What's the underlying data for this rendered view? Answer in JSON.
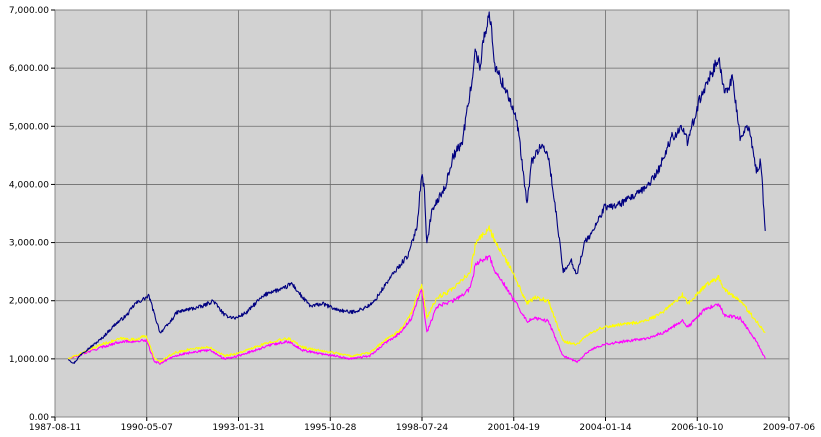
{
  "chart_data": {
    "type": "line",
    "title": "",
    "xlabel": "",
    "ylabel": "",
    "x_range": [
      "1987-08-11",
      "2009-07-06"
    ],
    "ylim": [
      0,
      7000
    ],
    "grid": true,
    "legend": "none",
    "plot_background": "#d2d2d2",
    "x_ticks": [
      "1987-08-11",
      "1990-05-07",
      "1993-01-31",
      "1995-10-28",
      "1998-07-24",
      "2001-04-19",
      "2004-01-14",
      "2006-10-10",
      "2009-07-06"
    ],
    "y_ticks": [
      {
        "value": 0,
        "label": "0.00"
      },
      {
        "value": 1000,
        "label": "1,000.00"
      },
      {
        "value": 2000,
        "label": "2,000.00"
      },
      {
        "value": 3000,
        "label": "3,000.00"
      },
      {
        "value": 4000,
        "label": "4,000.00"
      },
      {
        "value": 5000,
        "label": "5,000.00"
      },
      {
        "value": 6000,
        "label": "6,000.00"
      },
      {
        "value": 7000,
        "label": "7,000.00"
      }
    ],
    "series": [
      {
        "color": "#000080",
        "points": [
          [
            "1988-01-04",
            1000
          ],
          [
            "1988-03-01",
            920
          ],
          [
            "1988-06-01",
            1100
          ],
          [
            "1988-09-01",
            1200
          ],
          [
            "1989-01-01",
            1350
          ],
          [
            "1989-06-01",
            1600
          ],
          [
            "1989-10-01",
            1750
          ],
          [
            "1990-01-01",
            1950
          ],
          [
            "1990-03-01",
            2000
          ],
          [
            "1990-06-01",
            2080
          ],
          [
            "1990-08-01",
            1750
          ],
          [
            "1990-10-01",
            1450
          ],
          [
            "1991-01-01",
            1600
          ],
          [
            "1991-04-01",
            1800
          ],
          [
            "1991-08-01",
            1850
          ],
          [
            "1992-01-01",
            1900
          ],
          [
            "1992-05-01",
            2000
          ],
          [
            "1992-09-01",
            1750
          ],
          [
            "1993-01-01",
            1700
          ],
          [
            "1993-05-01",
            1800
          ],
          [
            "1993-09-01",
            2000
          ],
          [
            "1994-01-01",
            2150
          ],
          [
            "1994-06-01",
            2200
          ],
          [
            "1994-09-01",
            2300
          ],
          [
            "1995-01-01",
            2050
          ],
          [
            "1995-04-01",
            1900
          ],
          [
            "1995-08-01",
            1950
          ],
          [
            "1996-01-01",
            1850
          ],
          [
            "1996-06-01",
            1800
          ],
          [
            "1996-10-01",
            1850
          ],
          [
            "1997-02-01",
            1950
          ],
          [
            "1997-07-01",
            2300
          ],
          [
            "1997-10-01",
            2500
          ],
          [
            "1998-03-01",
            2800
          ],
          [
            "1998-06-01",
            3300
          ],
          [
            "1998-07-20",
            4200
          ],
          [
            "1998-08-20",
            3900
          ],
          [
            "1998-09-15",
            2950
          ],
          [
            "1998-11-01",
            3500
          ],
          [
            "1999-01-01",
            3700
          ],
          [
            "1999-04-01",
            3950
          ],
          [
            "1999-07-01",
            4500
          ],
          [
            "1999-10-01",
            4700
          ],
          [
            "2000-01-01",
            5600
          ],
          [
            "2000-03-01",
            6300
          ],
          [
            "2000-04-15",
            6000
          ],
          [
            "2000-06-01",
            6600
          ],
          [
            "2000-08-01",
            6900
          ],
          [
            "2000-10-01",
            6000
          ],
          [
            "2001-01-01",
            5700
          ],
          [
            "2001-03-01",
            5500
          ],
          [
            "2001-06-01",
            5000
          ],
          [
            "2001-09-10",
            3650
          ],
          [
            "2001-11-01",
            4400
          ],
          [
            "2002-02-01",
            4650
          ],
          [
            "2002-05-01",
            4500
          ],
          [
            "2002-08-01",
            3400
          ],
          [
            "2002-10-10",
            2500
          ],
          [
            "2003-01-01",
            2700
          ],
          [
            "2003-03-10",
            2450
          ],
          [
            "2003-06-01",
            3000
          ],
          [
            "2003-09-01",
            3200
          ],
          [
            "2004-01-01",
            3600
          ],
          [
            "2004-06-01",
            3650
          ],
          [
            "2004-10-01",
            3750
          ],
          [
            "2005-03-01",
            3900
          ],
          [
            "2005-08-01",
            4200
          ],
          [
            "2006-01-01",
            4800
          ],
          [
            "2006-05-01",
            5000
          ],
          [
            "2006-07-01",
            4700
          ],
          [
            "2006-10-01",
            5300
          ],
          [
            "2007-02-01",
            5800
          ],
          [
            "2007-06-01",
            6150
          ],
          [
            "2007-08-01",
            5600
          ],
          [
            "2007-11-01",
            5800
          ],
          [
            "2008-01-20",
            4800
          ],
          [
            "2008-05-01",
            5000
          ],
          [
            "2008-07-15",
            4200
          ],
          [
            "2008-09-01",
            4400
          ],
          [
            "2008-10-20",
            3200
          ]
        ]
      },
      {
        "color": "#ffff00",
        "points": [
          [
            "1988-01-04",
            1000
          ],
          [
            "1988-06-01",
            1100
          ],
          [
            "1989-01-01",
            1250
          ],
          [
            "1989-08-01",
            1350
          ],
          [
            "1990-01-01",
            1330
          ],
          [
            "1990-05-01",
            1400
          ],
          [
            "1990-08-01",
            1000
          ],
          [
            "1990-10-01",
            950
          ],
          [
            "1991-03-01",
            1100
          ],
          [
            "1991-10-01",
            1180
          ],
          [
            "1992-04-01",
            1200
          ],
          [
            "1992-09-01",
            1050
          ],
          [
            "1993-02-01",
            1100
          ],
          [
            "1993-08-01",
            1200
          ],
          [
            "1994-02-01",
            1300
          ],
          [
            "1994-08-01",
            1350
          ],
          [
            "1995-01-01",
            1200
          ],
          [
            "1995-06-01",
            1150
          ],
          [
            "1996-01-01",
            1100
          ],
          [
            "1996-06-01",
            1050
          ],
          [
            "1997-01-01",
            1100
          ],
          [
            "1997-06-01",
            1300
          ],
          [
            "1997-12-01",
            1500
          ],
          [
            "1998-04-01",
            1800
          ],
          [
            "1998-07-20",
            2300
          ],
          [
            "1998-09-15",
            1700
          ],
          [
            "1999-01-01",
            2050
          ],
          [
            "1999-07-01",
            2200
          ],
          [
            "2000-01-01",
            2500
          ],
          [
            "2000-03-01",
            3000
          ],
          [
            "2000-08-01",
            3250
          ],
          [
            "2000-10-01",
            3000
          ],
          [
            "2001-03-01",
            2600
          ],
          [
            "2001-09-10",
            1950
          ],
          [
            "2001-12-01",
            2050
          ],
          [
            "2002-05-01",
            2000
          ],
          [
            "2002-08-01",
            1600
          ],
          [
            "2002-10-10",
            1300
          ],
          [
            "2003-03-10",
            1250
          ],
          [
            "2003-08-01",
            1450
          ],
          [
            "2004-01-01",
            1550
          ],
          [
            "2004-08-01",
            1600
          ],
          [
            "2005-04-01",
            1650
          ],
          [
            "2005-10-01",
            1800
          ],
          [
            "2006-05-01",
            2100
          ],
          [
            "2006-07-01",
            1950
          ],
          [
            "2007-01-01",
            2250
          ],
          [
            "2007-06-01",
            2400
          ],
          [
            "2007-08-01",
            2200
          ],
          [
            "2008-01-20",
            2000
          ],
          [
            "2008-07-15",
            1650
          ],
          [
            "2008-10-20",
            1450
          ]
        ]
      },
      {
        "color": "#ff00ff",
        "points": [
          [
            "1988-01-04",
            1000
          ],
          [
            "1988-06-01",
            1080
          ],
          [
            "1989-01-01",
            1200
          ],
          [
            "1989-08-01",
            1300
          ],
          [
            "1990-01-01",
            1300
          ],
          [
            "1990-05-01",
            1320
          ],
          [
            "1990-08-01",
            950
          ],
          [
            "1990-10-01",
            920
          ],
          [
            "1991-03-01",
            1050
          ],
          [
            "1991-10-01",
            1120
          ],
          [
            "1992-04-01",
            1150
          ],
          [
            "1992-09-01",
            1000
          ],
          [
            "1993-02-01",
            1050
          ],
          [
            "1993-08-01",
            1150
          ],
          [
            "1994-02-01",
            1250
          ],
          [
            "1994-08-01",
            1300
          ],
          [
            "1995-01-01",
            1150
          ],
          [
            "1995-06-01",
            1100
          ],
          [
            "1996-01-01",
            1050
          ],
          [
            "1996-06-01",
            1000
          ],
          [
            "1997-01-01",
            1050
          ],
          [
            "1997-06-01",
            1250
          ],
          [
            "1997-12-01",
            1450
          ],
          [
            "1998-04-01",
            1700
          ],
          [
            "1998-07-20",
            2200
          ],
          [
            "1998-09-15",
            1450
          ],
          [
            "1999-01-01",
            1900
          ],
          [
            "1999-07-01",
            2000
          ],
          [
            "2000-01-01",
            2200
          ],
          [
            "2000-03-01",
            2650
          ],
          [
            "2000-08-01",
            2750
          ],
          [
            "2000-10-01",
            2500
          ],
          [
            "2001-03-01",
            2150
          ],
          [
            "2001-09-10",
            1650
          ],
          [
            "2001-12-01",
            1700
          ],
          [
            "2002-05-01",
            1650
          ],
          [
            "2002-08-01",
            1300
          ],
          [
            "2002-10-10",
            1050
          ],
          [
            "2003-03-10",
            950
          ],
          [
            "2003-08-01",
            1150
          ],
          [
            "2004-01-01",
            1250
          ],
          [
            "2004-08-01",
            1300
          ],
          [
            "2005-04-01",
            1350
          ],
          [
            "2005-10-01",
            1450
          ],
          [
            "2006-05-01",
            1650
          ],
          [
            "2006-07-01",
            1550
          ],
          [
            "2007-01-01",
            1850
          ],
          [
            "2007-06-01",
            1950
          ],
          [
            "2007-08-01",
            1750
          ],
          [
            "2008-01-20",
            1700
          ],
          [
            "2008-07-15",
            1300
          ],
          [
            "2008-10-20",
            1000
          ]
        ]
      }
    ]
  }
}
